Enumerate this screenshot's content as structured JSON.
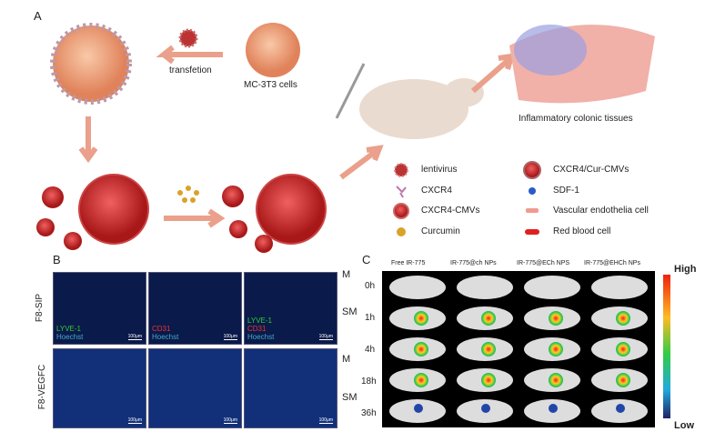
{
  "panel_a": {
    "label": "A",
    "transfection": "transfetion",
    "cell_label": "MC-3T3 cells",
    "tissue_label": "Inflammatory colonic tissues",
    "legend": [
      {
        "icon": "lentivirus-icon",
        "label": "lentivirus"
      },
      {
        "icon": "cxcr4-icon",
        "label": "CXCR4"
      },
      {
        "icon": "cxcr4-cmv-icon",
        "label": "CXCR4-CMVs"
      },
      {
        "icon": "curcumin-icon",
        "label": "Curcumin"
      },
      {
        "icon": "cxcr4-cur-cmv-icon",
        "label": "CXCR4/Cur-CMVs"
      },
      {
        "icon": "sdf1-icon",
        "label": "SDF-1"
      },
      {
        "icon": "endothelial-cell-icon",
        "label": "Vascular endothelia cell"
      },
      {
        "icon": "red-blood-cell-icon",
        "label": "Red blood cell"
      }
    ]
  },
  "panel_b": {
    "label": "B",
    "rows": [
      {
        "name": "F8-SIP"
      },
      {
        "name": "F8-VEGFC"
      }
    ],
    "stain1": "LYVE-1",
    "stain2": "CD31",
    "stain3": "Hoechst",
    "scale": "100μm",
    "layer_m": "M",
    "layer_sm": "SM"
  },
  "panel_c": {
    "label": "C",
    "columns": [
      "Free IR-775",
      "IR-775@ch NPs",
      "IR-775@ECh NPS",
      "IR-775@EHCh NPs"
    ],
    "times": [
      "0h",
      "1h",
      "4h",
      "18h",
      "36h"
    ],
    "high": "High",
    "low": "Low"
  }
}
